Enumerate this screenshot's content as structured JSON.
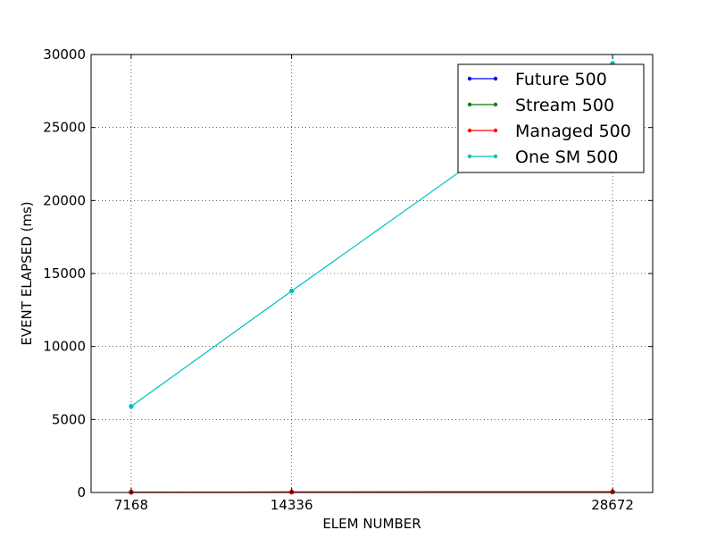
{
  "chart_data": {
    "type": "line",
    "xlabel": "ELEM NUMBER",
    "ylabel": "EVENT ELAPSED (ms)",
    "x": [
      7168,
      14336,
      28672
    ],
    "xlim": [
      5376,
      30464
    ],
    "ylim": [
      0,
      30000
    ],
    "xticks": [
      "7168",
      "14336",
      "28672"
    ],
    "yticks": [
      "0",
      "5000",
      "10000",
      "15000",
      "20000",
      "25000",
      "30000"
    ],
    "grid": true,
    "legend_position": "top-right",
    "series": [
      {
        "name": "Future 500",
        "color": "#0000ff",
        "values": [
          20,
          30,
          45
        ]
      },
      {
        "name": "Stream 500",
        "color": "#008000",
        "values": [
          20,
          30,
          45
        ]
      },
      {
        "name": "Managed 500",
        "color": "#ff0000",
        "values": [
          20,
          30,
          45
        ]
      },
      {
        "name": "One SM 500",
        "color": "#00bfbf",
        "values": [
          5900,
          13800,
          29400
        ]
      }
    ]
  }
}
